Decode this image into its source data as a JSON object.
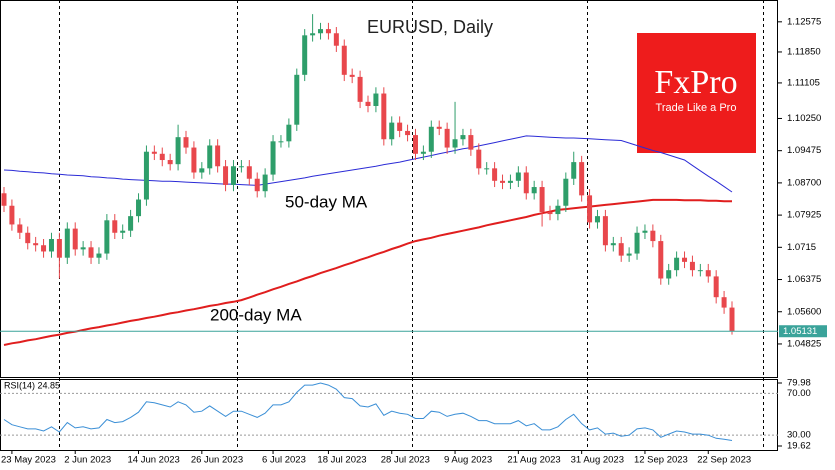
{
  "chart_data": {
    "type": "candlestick",
    "title": "EURUSD, Daily",
    "categories": [
      null,
      "23 May 2023",
      null,
      null,
      null,
      null,
      null,
      null,
      null,
      "2 Jun 2023",
      null,
      null,
      null,
      null,
      null,
      null,
      null,
      "14 Jun 2023",
      null,
      null,
      null,
      null,
      null,
      null,
      null,
      "26 Jun 2023",
      null,
      null,
      null,
      null,
      null,
      null,
      null,
      null,
      "6 Jul 2023",
      null,
      null,
      null,
      null,
      null,
      null,
      "18 Jul 2023",
      null,
      null,
      null,
      null,
      null,
      null,
      null,
      "28 Jul 2023",
      null,
      null,
      null,
      null,
      null,
      null,
      null,
      "9 Aug 2023",
      null,
      null,
      null,
      null,
      null,
      null,
      null,
      "21 Aug 2023",
      null,
      null,
      null,
      null,
      null,
      null,
      null,
      "31 Aug 2023",
      null,
      null,
      null,
      null,
      null,
      null,
      null,
      "12 Sep 2023",
      null,
      null,
      null,
      null,
      null,
      null,
      null,
      "22 Sep 2023",
      null,
      null,
      null
    ],
    "open": [
      1.0845,
      1.0815,
      1.077,
      1.075,
      1.0725,
      1.072,
      1.0705,
      1.0735,
      1.069,
      1.076,
      1.071,
      1.0715,
      1.069,
      1.07,
      1.078,
      1.075,
      1.0755,
      1.079,
      1.083,
      1.0945,
      1.094,
      1.0925,
      1.0915,
      1.098,
      1.0955,
      1.0895,
      1.0905,
      1.096,
      1.091,
      1.0865,
      1.091,
      1.091,
      1.088,
      1.085,
      1.089,
      1.097,
      1.097,
      1.101,
      1.113,
      1.1225,
      1.123,
      1.124,
      1.123,
      1.12,
      1.113,
      1.1125,
      1.1065,
      1.1055,
      1.1085,
      1.0975,
      1.1015,
      1.0995,
      1.0985,
      1.094,
      1.0945,
      1.1005,
      1.1,
      1.0955,
      1.0975,
      1.0985,
      1.095,
      1.0905,
      1.0905,
      1.0875,
      1.087,
      1.0875,
      1.0895,
      1.0845,
      1.086,
      1.08,
      1.0795,
      1.0815,
      1.088,
      1.092,
      1.084,
      1.0775,
      1.079,
      1.072,
      1.0725,
      1.0695,
      1.07,
      1.075,
      1.0755,
      1.073,
      1.064,
      1.066,
      1.069,
      1.068,
      1.066,
      1.066,
      1.0645,
      1.0595,
      1.057
    ],
    "high": [
      1.086,
      1.083,
      1.0785,
      1.0765,
      1.074,
      1.0735,
      1.075,
      1.075,
      1.0775,
      1.0775,
      1.073,
      1.073,
      1.0715,
      1.0795,
      1.0795,
      1.077,
      1.0805,
      1.0845,
      1.096,
      1.096,
      1.0955,
      1.094,
      1.101,
      1.0995,
      1.097,
      1.092,
      1.0975,
      1.0975,
      1.0925,
      1.0925,
      1.0925,
      1.0925,
      1.0895,
      1.0905,
      1.0985,
      1.0985,
      1.1025,
      1.1145,
      1.124,
      1.1276,
      1.1255,
      1.1255,
      1.1245,
      1.1215,
      1.1145,
      1.114,
      1.108,
      1.11,
      1.11,
      1.103,
      1.103,
      1.101,
      1.1,
      1.096,
      1.102,
      1.102,
      1.1015,
      1.1065,
      1.1,
      1.1,
      1.0965,
      1.092,
      1.092,
      1.089,
      1.089,
      1.091,
      1.091,
      1.0875,
      1.0875,
      1.0815,
      1.083,
      1.0895,
      1.0945,
      1.0935,
      1.0855,
      1.0805,
      1.0805,
      1.074,
      1.074,
      1.0715,
      1.0765,
      1.077,
      1.077,
      1.0745,
      1.0675,
      1.0705,
      1.0705,
      1.0695,
      1.0675,
      1.0675,
      1.066,
      1.061,
      1.0585
    ],
    "low": [
      1.08,
      1.0755,
      1.0735,
      1.071,
      1.0705,
      1.069,
      1.069,
      1.064,
      1.0675,
      1.0695,
      1.0695,
      1.0675,
      1.0675,
      1.0685,
      1.0735,
      1.0735,
      1.074,
      1.0775,
      1.0815,
      1.0925,
      1.091,
      1.09,
      1.09,
      1.094,
      1.088,
      1.088,
      1.089,
      1.0895,
      1.085,
      1.085,
      1.0895,
      1.0865,
      1.0835,
      1.0835,
      1.0875,
      1.0955,
      1.0955,
      1.0995,
      1.1115,
      1.121,
      1.1215,
      1.1215,
      1.1185,
      1.1115,
      1.111,
      1.105,
      1.104,
      1.104,
      1.096,
      1.096,
      1.098,
      1.097,
      1.0925,
      1.0925,
      1.093,
      1.0985,
      1.094,
      1.094,
      1.096,
      1.0935,
      1.089,
      1.089,
      1.086,
      1.0855,
      1.0855,
      1.086,
      1.083,
      1.083,
      1.0765,
      1.078,
      1.078,
      1.08,
      1.0865,
      1.0825,
      1.076,
      1.076,
      1.0705,
      1.0705,
      1.068,
      1.068,
      1.0685,
      1.0735,
      1.0715,
      1.0625,
      1.0625,
      1.0645,
      1.0665,
      1.0645,
      1.0645,
      1.063,
      1.058,
      1.0555,
      1.0505
    ],
    "close": [
      1.0815,
      1.077,
      1.075,
      1.0725,
      1.072,
      1.0705,
      1.0735,
      1.069,
      1.076,
      1.071,
      1.0715,
      1.069,
      1.07,
      1.078,
      1.075,
      1.0755,
      1.079,
      1.083,
      1.0945,
      1.094,
      1.0925,
      1.0915,
      1.098,
      1.0955,
      1.0895,
      1.0905,
      1.096,
      1.091,
      1.0865,
      1.091,
      1.091,
      1.088,
      1.085,
      1.089,
      1.097,
      1.097,
      1.101,
      1.113,
      1.1225,
      1.123,
      1.124,
      1.123,
      1.12,
      1.113,
      1.1125,
      1.1065,
      1.1055,
      1.1085,
      1.0975,
      1.1015,
      1.0995,
      1.0985,
      1.094,
      1.0945,
      1.1005,
      1.1,
      1.0955,
      1.0975,
      1.0985,
      1.095,
      1.0905,
      1.0905,
      1.0875,
      1.087,
      1.0875,
      1.0895,
      1.0845,
      1.086,
      1.08,
      1.0795,
      1.0815,
      1.088,
      1.092,
      1.084,
      1.0775,
      1.079,
      1.072,
      1.0725,
      1.0695,
      1.07,
      1.075,
      1.0755,
      1.073,
      1.064,
      1.066,
      1.069,
      1.068,
      1.066,
      1.066,
      1.0645,
      1.0595,
      1.057,
      1.0513
    ],
    "up_color": "#2e9e6a",
    "down_color": "#e8474c",
    "ylim": [
      1.0403,
      1.131
    ],
    "yticks": [
      1.12575,
      {
        "value": 1.1185,
        "label": "1.11850"
      },
      1.11105,
      {
        "value": 1.1025,
        "label": "1.10250"
      },
      1.09475,
      {
        "value": 1.087,
        "label": "1.08700"
      },
      1.07925,
      1.0715,
      1.06375,
      {
        "value": 1.056,
        "label": "1.05600"
      },
      1.04825
    ],
    "series": [
      {
        "name": "50-day MA",
        "color": "#2b2bd6",
        "values": [
          1.0901,
          1.09,
          1.0898,
          1.0897,
          1.0895,
          1.0894,
          1.0892,
          1.0891,
          1.0889,
          1.0888,
          1.0887,
          1.0885,
          1.0884,
          1.0882,
          1.0881,
          1.0879,
          1.0878,
          1.0877,
          1.0876,
          1.0875,
          1.0874,
          1.0874,
          1.0873,
          1.0872,
          1.0871,
          1.087,
          1.0869,
          1.0868,
          1.0867,
          1.0867,
          1.0866,
          1.0865,
          1.0864,
          1.0867,
          1.087,
          1.0873,
          1.0876,
          1.0879,
          1.0882,
          1.0886,
          1.0889,
          1.0892,
          1.0895,
          1.0898,
          1.0901,
          1.0904,
          1.0907,
          1.091,
          1.0914,
          1.0917,
          1.092,
          1.0924,
          1.0928,
          1.0932,
          1.0936,
          1.094,
          1.0944,
          1.0948,
          1.0952,
          1.0955,
          1.0959,
          1.0963,
          1.0967,
          1.0971,
          1.0975,
          1.0979,
          1.0983,
          1.0982,
          1.0981,
          1.098,
          1.0979,
          1.0978,
          1.0978,
          1.0977,
          1.0976,
          1.0975,
          1.0974,
          1.0973,
          1.0972,
          1.0966,
          1.096,
          1.0954,
          1.0948,
          1.0943,
          1.0937,
          1.0931,
          1.0925,
          1.0912,
          1.0899,
          1.0886,
          1.0874,
          1.0861,
          1.0848
        ]
      },
      {
        "name": "200-day MA",
        "color": "#e01e1e",
        "values": [
          1.048,
          1.0484,
          1.0487,
          1.0491,
          1.0494,
          1.0498,
          1.0502,
          1.0505,
          1.0509,
          1.0512,
          1.0516,
          1.052,
          1.0523,
          1.0527,
          1.053,
          1.0534,
          1.0538,
          1.0541,
          1.0545,
          1.0548,
          1.0552,
          1.0556,
          1.0559,
          1.0563,
          1.0566,
          1.057,
          1.0574,
          1.0577,
          1.0581,
          1.0584,
          1.0588,
          1.0594,
          1.0601,
          1.0607,
          1.0614,
          1.062,
          1.0627,
          1.0633,
          1.064,
          1.0646,
          1.0653,
          1.0659,
          1.0665,
          1.0672,
          1.0678,
          1.0685,
          1.0691,
          1.0698,
          1.0704,
          1.0711,
          1.0717,
          1.0724,
          1.073,
          1.0734,
          1.0738,
          1.0743,
          1.0747,
          1.0751,
          1.0755,
          1.0759,
          1.0763,
          1.0768,
          1.0772,
          1.0776,
          1.078,
          1.0784,
          1.0788,
          1.0793,
          1.0797,
          1.0801,
          1.0805,
          1.0807,
          1.0809,
          1.0811,
          1.0813,
          1.0815,
          1.0817,
          1.0819,
          1.0821,
          1.0823,
          1.0825,
          1.0827,
          1.0829,
          1.0829,
          1.0829,
          1.0829,
          1.0828,
          1.0828,
          1.0828,
          1.0827,
          1.0827,
          1.0826,
          1.0826
        ]
      }
    ],
    "current_price": 1.05131,
    "current_price_color": "#3aa39a",
    "rsi": {
      "type": "line",
      "label": "RSI(14) 24.85",
      "color": "#3b8fd6",
      "values": [
        45,
        40,
        38,
        36,
        36,
        34,
        38,
        33,
        42,
        37,
        38,
        36,
        37,
        45,
        42,
        43,
        47,
        52,
        62,
        61,
        59,
        57,
        62,
        59,
        52,
        53,
        58,
        53,
        48,
        53,
        53,
        50,
        47,
        51,
        59,
        59,
        62,
        71,
        78,
        78,
        79.98,
        78,
        74,
        66,
        65,
        58,
        57,
        60,
        49,
        53,
        51,
        50,
        46,
        46,
        53,
        52,
        48,
        50,
        51,
        48,
        44,
        44,
        41,
        41,
        41,
        44,
        39,
        41,
        35,
        35,
        38,
        45,
        50,
        41,
        35,
        37,
        31,
        32,
        29,
        30,
        36,
        37,
        35,
        28,
        31,
        34,
        33,
        31,
        31,
        30,
        27,
        26,
        24.85
      ],
      "ylim": [
        19.62,
        79.98
      ],
      "yticks": [
        79.98,
        {
          "value": 70,
          "label": "70.00"
        },
        {
          "value": 30,
          "label": "30.00"
        },
        19.62
      ]
    }
  },
  "logo": {
    "name": "FxPro",
    "tagline": "Trade Like a Pro"
  }
}
